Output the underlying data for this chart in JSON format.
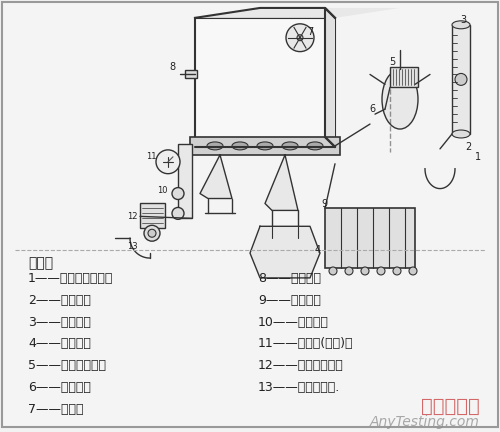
{
  "bg_color": "#f0f0f0",
  "border_color": "#cccccc",
  "title_text": "",
  "watermark1": "嘉峪检测网",
  "watermark2": "AnyTesting.com",
  "section_title": "说明：",
  "left_items": [
    "1——经过滤的空气；",
    "2——喷雾器；",
    "3——流量计；",
    "4——诱捕瓶；",
    "5——空气过滤器；",
    "6——排雾管；",
    "7——风扇；"
  ],
  "right_items": [
    "8——样品口；",
    "9——多路管；",
    "10——开启阀；",
    "11——压力表(可选)；",
    "12——空气过滤器；",
    "13——接至真空泵."
  ],
  "text_color": "#222222",
  "watermark_color": "#888888",
  "font_size_main": 9,
  "font_size_section": 10,
  "font_size_watermark": 14
}
